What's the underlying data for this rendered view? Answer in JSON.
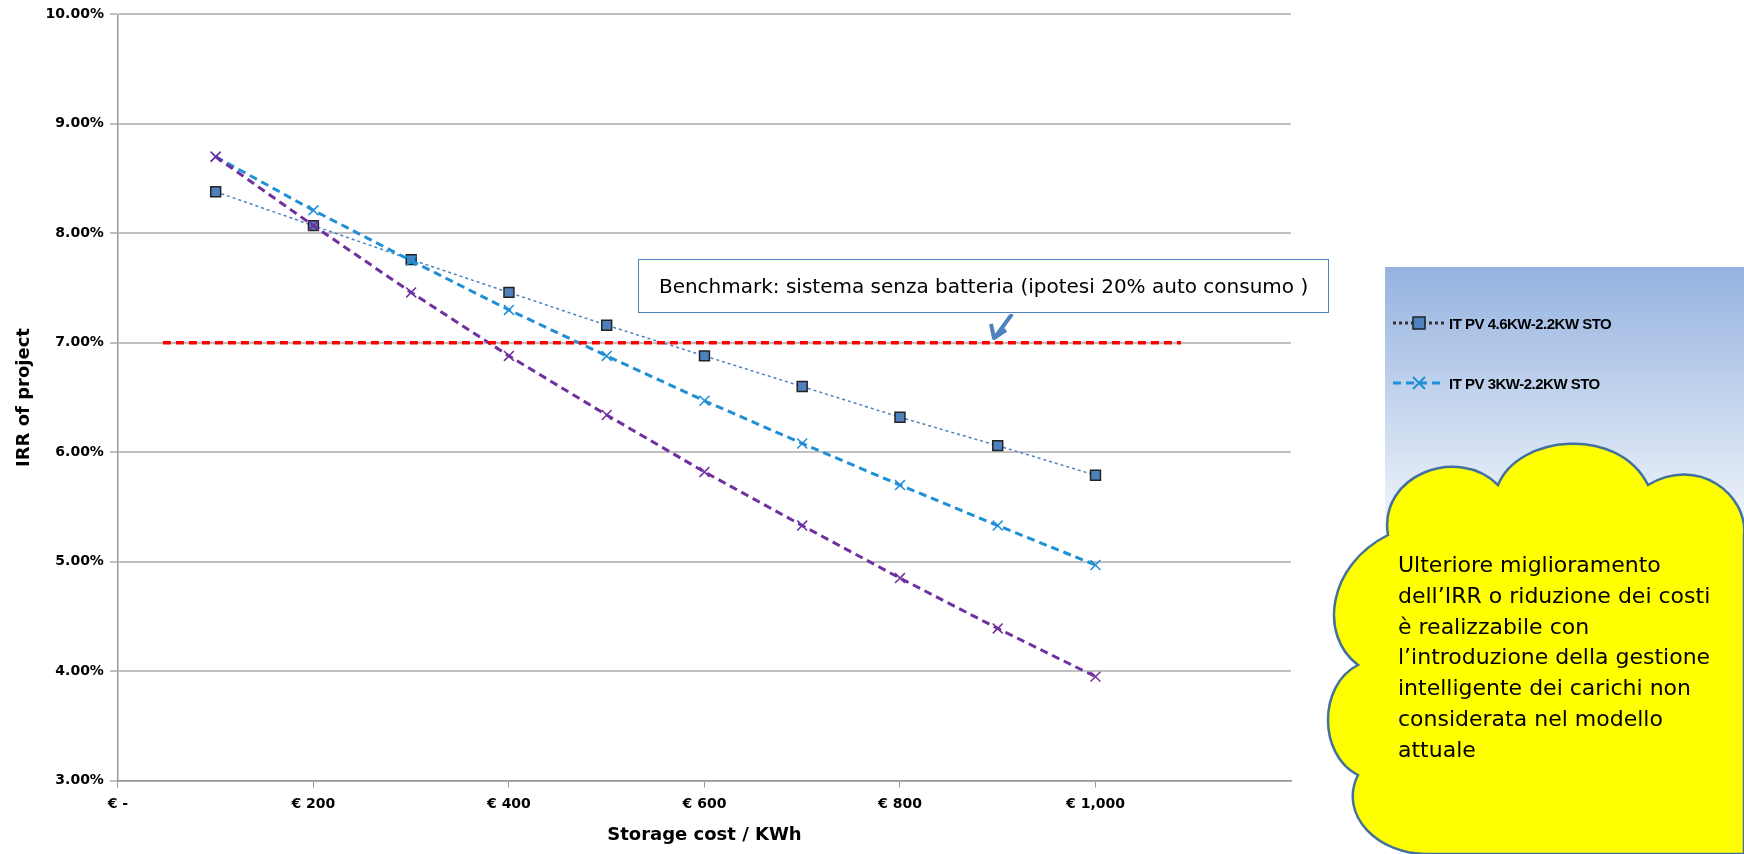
{
  "chart_data": {
    "type": "line",
    "xlabel": "Storage cost / KWh",
    "ylabel": "IRR of project",
    "x": [
      100,
      200,
      300,
      400,
      500,
      600,
      700,
      800,
      900,
      1000
    ],
    "series": [
      {
        "name": "IT PV 4.6KW-2.2KW STO",
        "color": "#4f81bd",
        "marker": "square",
        "line_style": "dotted",
        "values": [
          8.38,
          8.07,
          7.76,
          7.46,
          7.16,
          6.88,
          6.6,
          6.32,
          6.06,
          5.79
        ]
      },
      {
        "name": "IT PV 3KW-2.2KW STO",
        "color": "#1f8fd6",
        "marker": "cross",
        "line_style": "dashed",
        "values": [
          8.7,
          8.21,
          7.75,
          7.3,
          6.88,
          6.47,
          6.08,
          5.7,
          5.33,
          4.97
        ]
      },
      {
        "color": "#7030a0",
        "marker": "cross",
        "line_style": "dashed",
        "values": [
          8.7,
          8.07,
          7.46,
          6.88,
          6.34,
          5.82,
          5.33,
          4.85,
          4.39,
          3.95
        ]
      }
    ],
    "xlim": [
      0,
      1200
    ],
    "xticks": [
      {
        "value": 0,
        "label": "€ -"
      },
      {
        "value": 200,
        "label": "€ 200"
      },
      {
        "value": 400,
        "label": "€ 400"
      },
      {
        "value": 600,
        "label": "€ 600"
      },
      {
        "value": 800,
        "label": "€ 800"
      },
      {
        "value": 1000,
        "label": "€ 1,000"
      }
    ],
    "ylim": [
      3,
      10
    ],
    "yticks": [
      {
        "value": 3,
        "label": "3.00%"
      },
      {
        "value": 4,
        "label": "4.00%"
      },
      {
        "value": 5,
        "label": "5.00%"
      },
      {
        "value": 6,
        "label": "6.00%"
      },
      {
        "value": 7,
        "label": "7.00%"
      },
      {
        "value": 8,
        "label": "8.00%"
      },
      {
        "value": 9,
        "label": "9.00%"
      },
      {
        "value": 10,
        "label": "10.00%"
      }
    ],
    "grid": "y",
    "legend": "right",
    "ref_lines": [
      {
        "axis": "y",
        "value": 7,
        "label": "Benchmark: sistema senza batteria (ipotesi  20% auto consumo )",
        "color": "#ff0000",
        "line_style": "dashed"
      }
    ],
    "annotations": [
      "Ulteriore miglioramento dell’IRR o riduzione dei costi è realizzabile con l’introduzione della gestione intelligente dei carichi non considerata nel modello attuale"
    ]
  }
}
